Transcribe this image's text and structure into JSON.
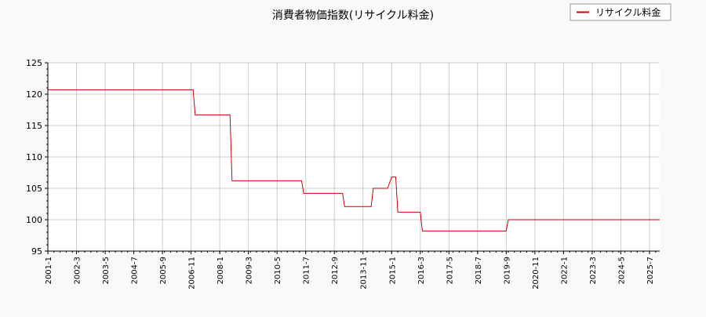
{
  "chart_data": {
    "type": "line",
    "title": "消費者物価指数(リサイクル料金)",
    "xlabel": "",
    "ylabel": "",
    "ylim": [
      95,
      125
    ],
    "yticks": [
      95,
      100,
      105,
      110,
      115,
      120,
      125
    ],
    "xlim": [
      "2001-01",
      "2025-12"
    ],
    "xticks": [
      "2001-1",
      "2002-3",
      "2003-5",
      "2004-7",
      "2005-9",
      "2006-11",
      "2008-1",
      "2009-3",
      "2010-5",
      "2011-7",
      "2012-9",
      "2013-11",
      "2015-1",
      "2016-3",
      "2017-5",
      "2018-7",
      "2019-9",
      "2020-11",
      "2022-1",
      "2023-3",
      "2024-5",
      "2025-7"
    ],
    "grid": true,
    "legend": {
      "position": "top-right",
      "entries": [
        "リサイクル料金"
      ]
    },
    "series": [
      {
        "name": "リサイクル料金",
        "color": "#cc0000",
        "points": [
          [
            "2001-01",
            120.7
          ],
          [
            "2006-12",
            120.7
          ],
          [
            "2007-01",
            116.7
          ],
          [
            "2008-06",
            116.7
          ],
          [
            "2008-07",
            106.2
          ],
          [
            "2011-05",
            106.2
          ],
          [
            "2011-06",
            104.2
          ],
          [
            "2013-01",
            104.2
          ],
          [
            "2013-02",
            102.1
          ],
          [
            "2014-03",
            102.1
          ],
          [
            "2014-04",
            105.0
          ],
          [
            "2014-11",
            105.0
          ],
          [
            "2015-01",
            106.8
          ],
          [
            "2015-03",
            106.8
          ],
          [
            "2015-04",
            101.2
          ],
          [
            "2016-03",
            101.2
          ],
          [
            "2016-04",
            98.2
          ],
          [
            "2019-09",
            98.2
          ],
          [
            "2019-10",
            100.0
          ],
          [
            "2025-12",
            100.0
          ]
        ]
      }
    ]
  }
}
